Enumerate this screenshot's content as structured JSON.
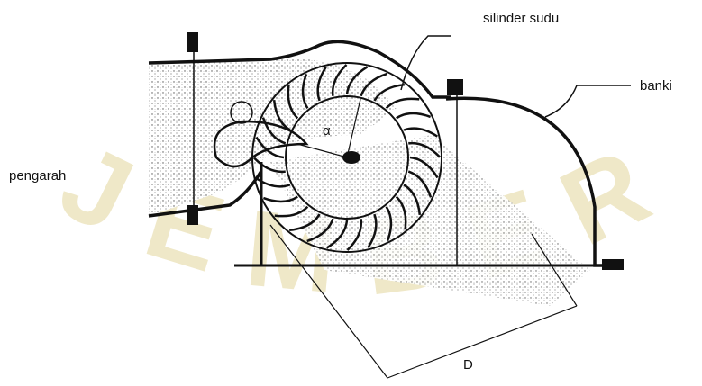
{
  "labels": {
    "top": "silinder sudu",
    "right": "banki",
    "left": "pengarah",
    "angle": "α",
    "diameter": "D"
  },
  "watermark": "JEMBER"
}
